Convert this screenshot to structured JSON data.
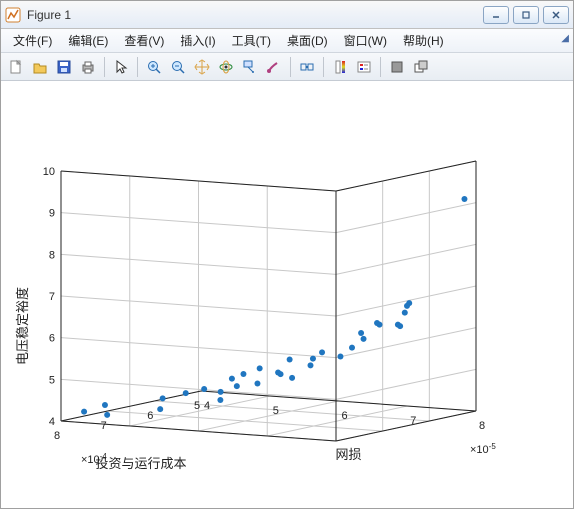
{
  "window": {
    "title": "Figure 1",
    "min_tooltip": "Minimize",
    "max_tooltip": "Maximize",
    "close_tooltip": "Close"
  },
  "menubar": {
    "items": [
      {
        "label": "文件(F)"
      },
      {
        "label": "编辑(E)"
      },
      {
        "label": "查看(V)"
      },
      {
        "label": "插入(I)"
      },
      {
        "label": "工具(T)"
      },
      {
        "label": "桌面(D)"
      },
      {
        "label": "窗口(W)"
      },
      {
        "label": "帮助(H)"
      }
    ]
  },
  "toolbar": {
    "groups": [
      [
        "new",
        "open",
        "save",
        "print"
      ],
      [
        "pointer"
      ],
      [
        "zoom-in",
        "zoom-out",
        "pan",
        "rotate3d",
        "data-cursor",
        "brush"
      ],
      [
        "link-data"
      ],
      [
        "colorbar",
        "legend"
      ],
      [
        "dock",
        "undock"
      ]
    ]
  },
  "chart": {
    "type": "scatter3d",
    "background_color": "#ffffff",
    "grid_color": "#c8c8c8",
    "axis_color": "#222222",
    "marker_color": "#2076c0",
    "marker_size": 3,
    "x": {
      "label": "网损",
      "ticks": [
        4,
        5,
        6,
        7,
        8
      ],
      "lim": [
        4,
        8
      ],
      "scale_exp": "×10",
      "scale_sup": "-5"
    },
    "y": {
      "label": "投资与运行成本",
      "ticks": [
        5,
        6,
        7,
        8
      ],
      "lim": [
        5,
        8
      ],
      "scale_exp": "×10",
      "scale_sup": "-4"
    },
    "z": {
      "label": "电压稳定裕度",
      "ticks": [
        4,
        5,
        6,
        7,
        8,
        9,
        10
      ],
      "lim": [
        4,
        10
      ]
    },
    "points": [
      [
        4.2,
        7.8,
        4.2
      ],
      [
        4.3,
        7.5,
        4.3
      ],
      [
        4.4,
        7.6,
        4.1
      ],
      [
        4.8,
        7.0,
        4.4
      ],
      [
        4.9,
        7.2,
        4.2
      ],
      [
        5.0,
        6.8,
        4.5
      ],
      [
        5.1,
        6.2,
        4.4
      ],
      [
        5.2,
        6.7,
        4.6
      ],
      [
        5.2,
        6.0,
        4.5
      ],
      [
        5.3,
        6.5,
        4.3
      ],
      [
        5.4,
        6.4,
        4.8
      ],
      [
        5.5,
        6.3,
        4.9
      ],
      [
        5.5,
        6.0,
        4.6
      ],
      [
        5.6,
        6.1,
        5.0
      ],
      [
        5.7,
        5.8,
        4.8
      ],
      [
        5.8,
        6.0,
        4.9
      ],
      [
        5.8,
        5.7,
        4.7
      ],
      [
        5.9,
        5.4,
        5.1
      ],
      [
        5.9,
        5.9,
        5.2
      ],
      [
        6.0,
        5.6,
        5.0
      ],
      [
        6.1,
        5.5,
        5.3
      ],
      [
        6.3,
        5.4,
        5.2
      ],
      [
        6.4,
        5.3,
        5.4
      ],
      [
        6.5,
        5.2,
        5.6
      ],
      [
        6.6,
        5.4,
        5.8
      ],
      [
        6.8,
        5.3,
        6.0
      ],
      [
        6.9,
        5.5,
        6.1
      ],
      [
        7.1,
        5.2,
        6.3
      ],
      [
        7.2,
        5.3,
        6.5
      ],
      [
        7.0,
        5.2,
        6.0
      ],
      [
        7.3,
        5.4,
        6.6
      ],
      [
        7.1,
        5.3,
        6.0
      ],
      [
        7.9,
        5.1,
        9.1
      ]
    ]
  }
}
